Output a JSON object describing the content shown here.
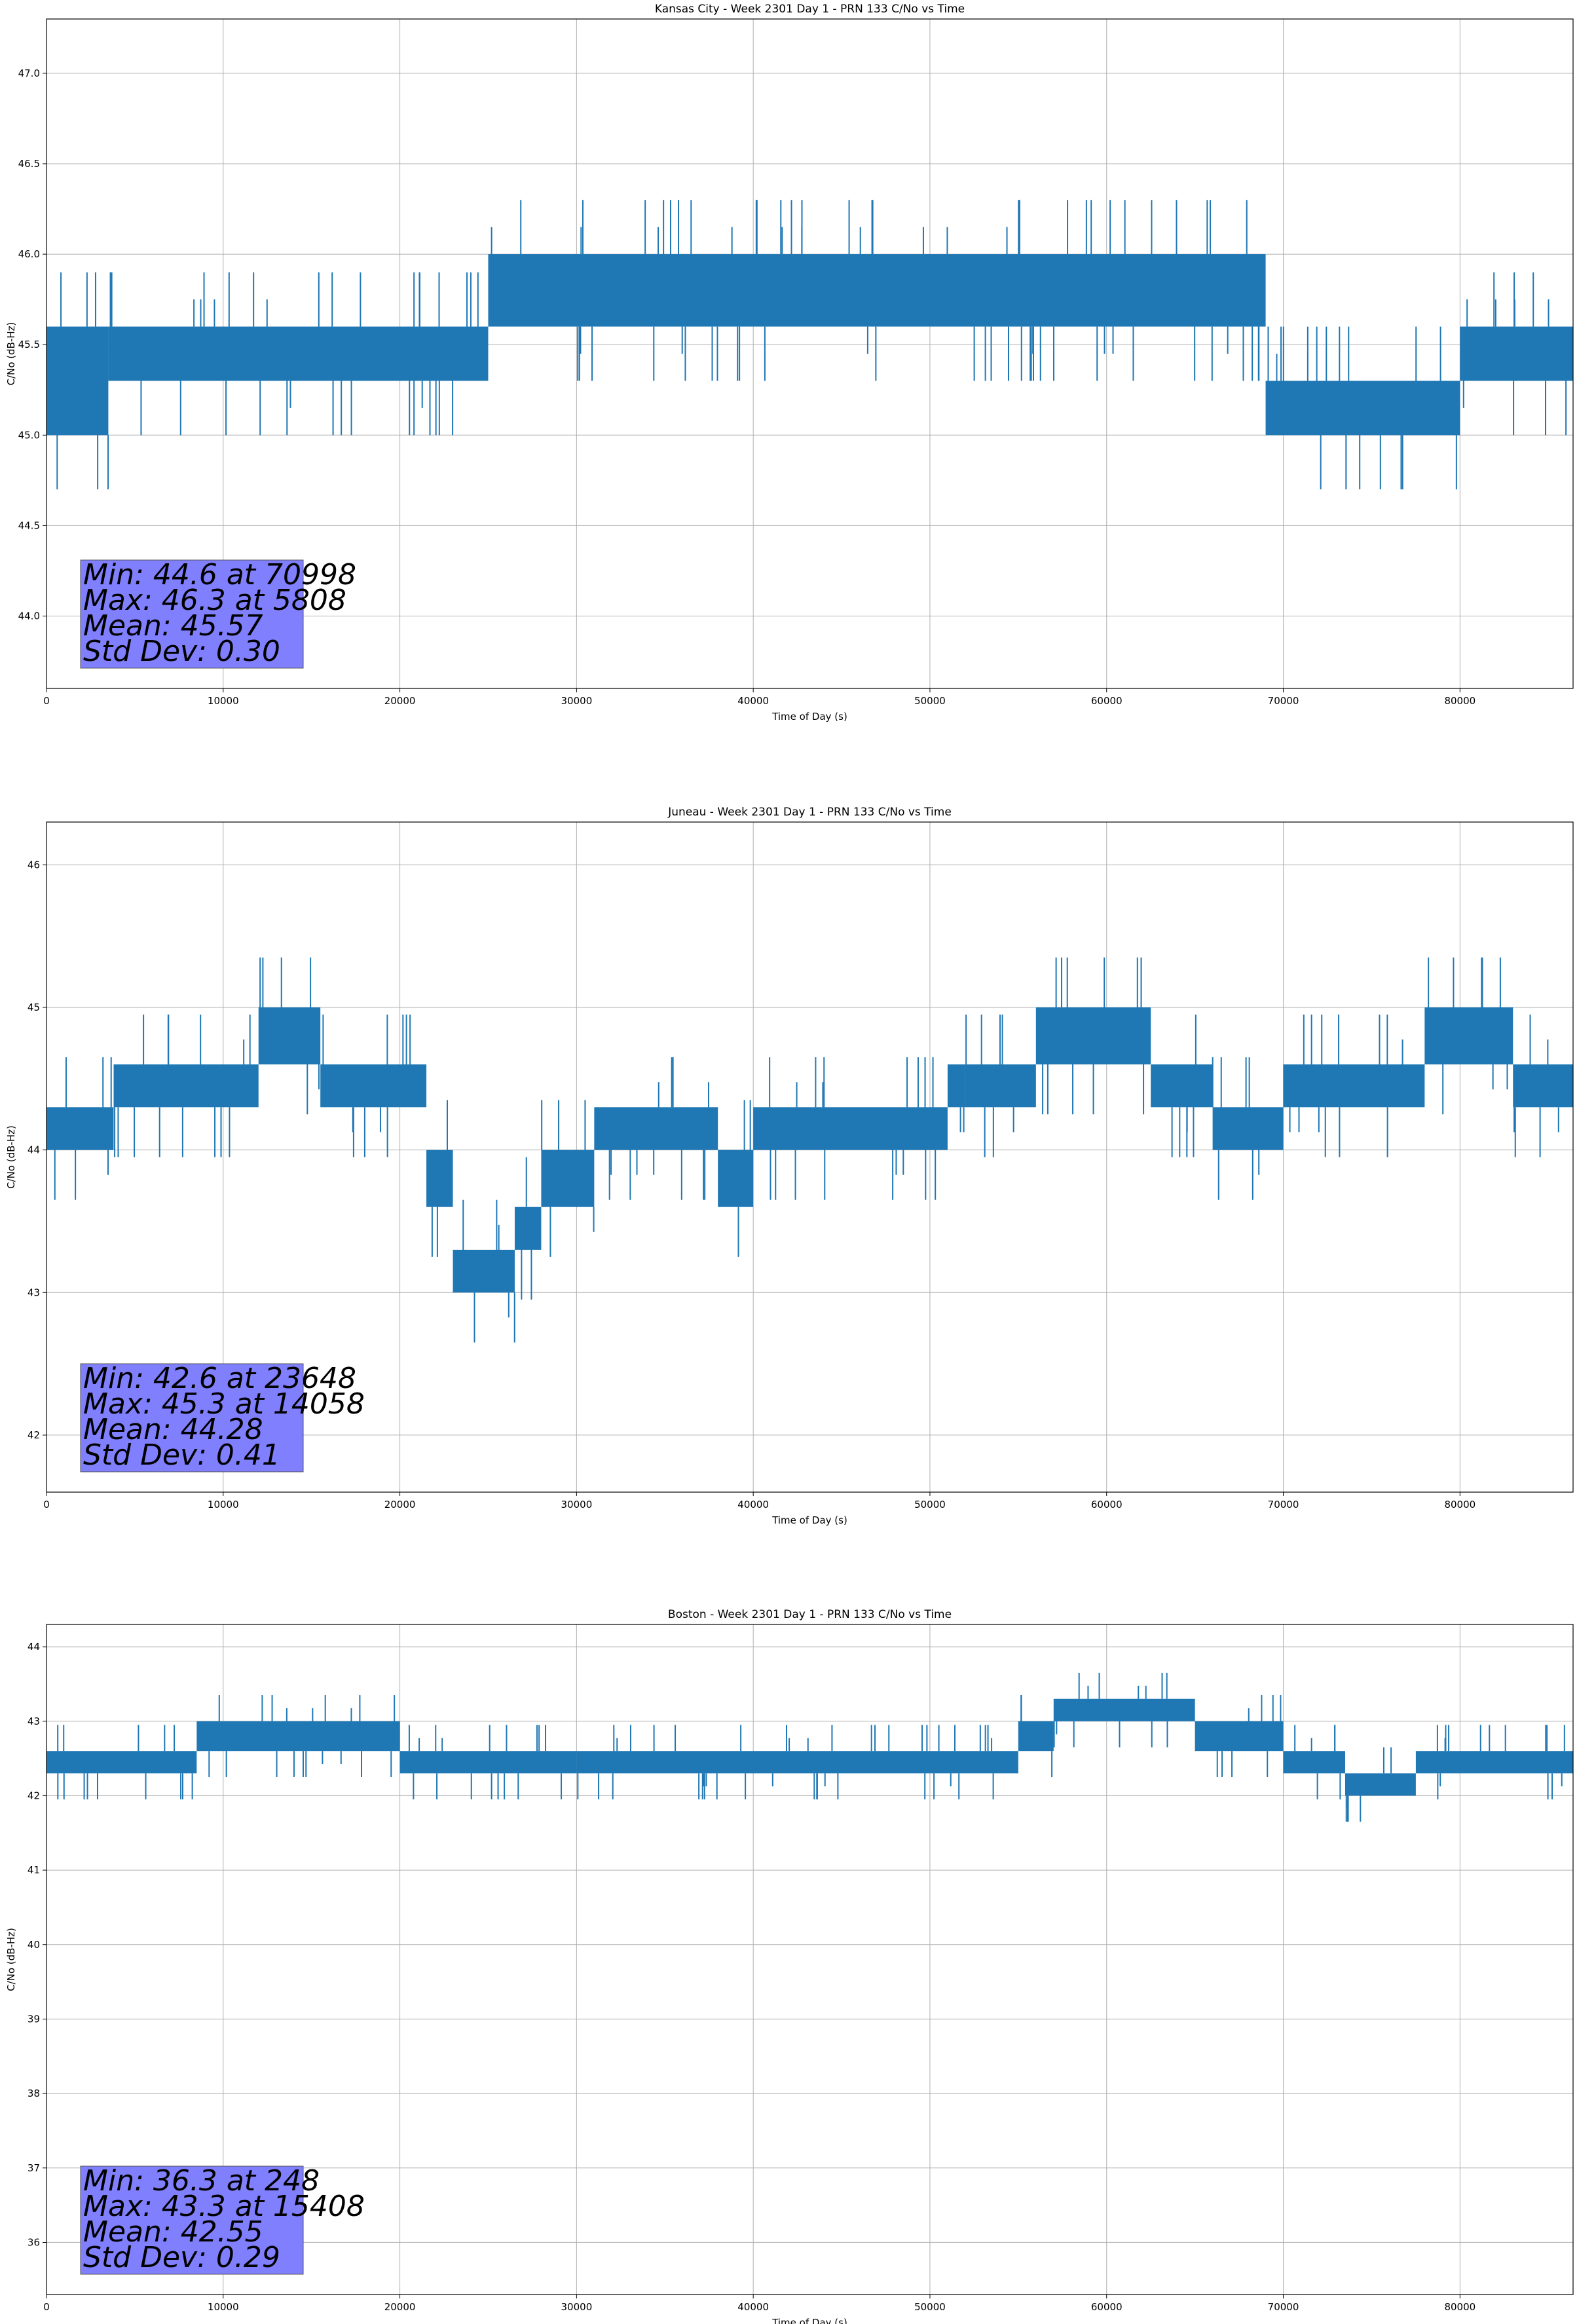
{
  "chart_data": [
    {
      "type": "line",
      "title": "Kansas City - Week 2301 Day 1 - PRN 133 C/No vs Time",
      "xlabel": "Time of Day (s)",
      "ylabel": "C/No (dB-Hz)",
      "xlim": [
        0,
        86400
      ],
      "ylim": [
        43.6,
        47.3
      ],
      "xticks": [
        0,
        10000,
        20000,
        30000,
        40000,
        50000,
        60000,
        70000,
        80000
      ],
      "yticks": [
        44.0,
        44.5,
        45.0,
        45.5,
        46.0,
        46.5,
        47.0
      ],
      "ytick_labels": [
        "44.0",
        "44.5",
        "45.0",
        "45.5",
        "46.0",
        "46.5",
        "47.0"
      ],
      "grid": true,
      "color": "#1f77b4",
      "series": [
        {
          "name": "C/No",
          "segments": [
            {
              "x0": 0,
              "x1": 3500,
              "lo": 45.0,
              "hi": 45.6
            },
            {
              "x0": 3500,
              "x1": 25000,
              "lo": 45.3,
              "hi": 45.6
            },
            {
              "x0": 25000,
              "x1": 69000,
              "lo": 45.6,
              "hi": 46.0
            },
            {
              "x0": 69000,
              "x1": 80000,
              "lo": 45.0,
              "hi": 45.3
            },
            {
              "x0": 80000,
              "x1": 86400,
              "lo": 45.3,
              "hi": 45.6
            }
          ]
        }
      ],
      "stats": {
        "min": "Min: 44.6 at 70998",
        "max": "Max: 46.3 at 5808",
        "mean": "Mean: 45.57",
        "std": "Std Dev: 0.30"
      }
    },
    {
      "type": "line",
      "title": "Juneau - Week 2301 Day 1 - PRN 133 C/No vs Time",
      "xlabel": "Time of Day (s)",
      "ylabel": "C/No (dB-Hz)",
      "xlim": [
        0,
        86400
      ],
      "ylim": [
        41.6,
        46.3
      ],
      "xticks": [
        0,
        10000,
        20000,
        30000,
        40000,
        50000,
        60000,
        70000,
        80000
      ],
      "yticks": [
        42,
        43,
        44,
        45,
        46
      ],
      "ytick_labels": [
        "42",
        "43",
        "44",
        "45",
        "46"
      ],
      "grid": true,
      "color": "#1f77b4",
      "series": [
        {
          "name": "C/No",
          "segments": [
            {
              "x0": 0,
              "x1": 3800,
              "lo": 44.0,
              "hi": 44.3
            },
            {
              "x0": 3800,
              "x1": 12000,
              "lo": 44.3,
              "hi": 44.6
            },
            {
              "x0": 12000,
              "x1": 15500,
              "lo": 44.6,
              "hi": 45.0
            },
            {
              "x0": 15500,
              "x1": 21500,
              "lo": 44.3,
              "hi": 44.6
            },
            {
              "x0": 21500,
              "x1": 23000,
              "lo": 43.6,
              "hi": 44.0
            },
            {
              "x0": 23000,
              "x1": 26500,
              "lo": 43.0,
              "hi": 43.3
            },
            {
              "x0": 26500,
              "x1": 28000,
              "lo": 43.3,
              "hi": 43.6
            },
            {
              "x0": 28000,
              "x1": 31000,
              "lo": 43.6,
              "hi": 44.0
            },
            {
              "x0": 31000,
              "x1": 38000,
              "lo": 44.0,
              "hi": 44.3
            },
            {
              "x0": 38000,
              "x1": 40000,
              "lo": 43.6,
              "hi": 44.0
            },
            {
              "x0": 40000,
              "x1": 51000,
              "lo": 44.0,
              "hi": 44.3
            },
            {
              "x0": 51000,
              "x1": 52000,
              "lo": 44.3,
              "hi": 44.6
            },
            {
              "x0": 52000,
              "x1": 56000,
              "lo": 44.3,
              "hi": 44.6
            },
            {
              "x0": 56000,
              "x1": 62500,
              "lo": 44.6,
              "hi": 45.0
            },
            {
              "x0": 62500,
              "x1": 66000,
              "lo": 44.3,
              "hi": 44.6
            },
            {
              "x0": 66000,
              "x1": 70000,
              "lo": 44.0,
              "hi": 44.3
            },
            {
              "x0": 70000,
              "x1": 78000,
              "lo": 44.3,
              "hi": 44.6
            },
            {
              "x0": 78000,
              "x1": 83000,
              "lo": 44.6,
              "hi": 45.0
            },
            {
              "x0": 83000,
              "x1": 86400,
              "lo": 44.3,
              "hi": 44.6
            }
          ]
        }
      ],
      "stats": {
        "min": "Min: 42.6 at 23648",
        "max": "Max: 45.3 at 14058",
        "mean": "Mean: 44.28",
        "std": "Std Dev: 0.41"
      }
    },
    {
      "type": "line",
      "title": "Boston - Week 2301 Day 1 - PRN 133 C/No vs Time",
      "xlabel": "Time of Day (s)",
      "ylabel": "C/No (dB-Hz)",
      "xlim": [
        0,
        86400
      ],
      "ylim": [
        35.3,
        44.3
      ],
      "xticks": [
        0,
        10000,
        20000,
        30000,
        40000,
        50000,
        60000,
        70000,
        80000
      ],
      "yticks": [
        36,
        37,
        38,
        39,
        40,
        41,
        42,
        43,
        44
      ],
      "ytick_labels": [
        "36",
        "37",
        "38",
        "39",
        "40",
        "41",
        "42",
        "43",
        "44"
      ],
      "grid": true,
      "color": "#1f77b4",
      "series": [
        {
          "name": "C/No",
          "segments": [
            {
              "x0": 0,
              "x1": 8500,
              "lo": 42.3,
              "hi": 42.6
            },
            {
              "x0": 8500,
              "x1": 20000,
              "lo": 42.6,
              "hi": 43.0
            },
            {
              "x0": 20000,
              "x1": 30000,
              "lo": 42.3,
              "hi": 42.6
            },
            {
              "x0": 30000,
              "x1": 55000,
              "lo": 42.3,
              "hi": 42.6
            },
            {
              "x0": 55000,
              "x1": 57000,
              "lo": 42.6,
              "hi": 43.0
            },
            {
              "x0": 57000,
              "x1": 65000,
              "lo": 43.0,
              "hi": 43.3
            },
            {
              "x0": 65000,
              "x1": 70000,
              "lo": 42.6,
              "hi": 43.0
            },
            {
              "x0": 70000,
              "x1": 73500,
              "lo": 42.3,
              "hi": 42.6
            },
            {
              "x0": 73500,
              "x1": 77500,
              "lo": 42.0,
              "hi": 42.3
            },
            {
              "x0": 77500,
              "x1": 86400,
              "lo": 42.3,
              "hi": 42.6
            }
          ]
        }
      ],
      "stats": {
        "min": "Min: 36.3 at 248",
        "max": "Max: 43.3 at 15408",
        "mean": "Mean: 42.55",
        "std": "Std Dev: 0.29"
      }
    }
  ]
}
